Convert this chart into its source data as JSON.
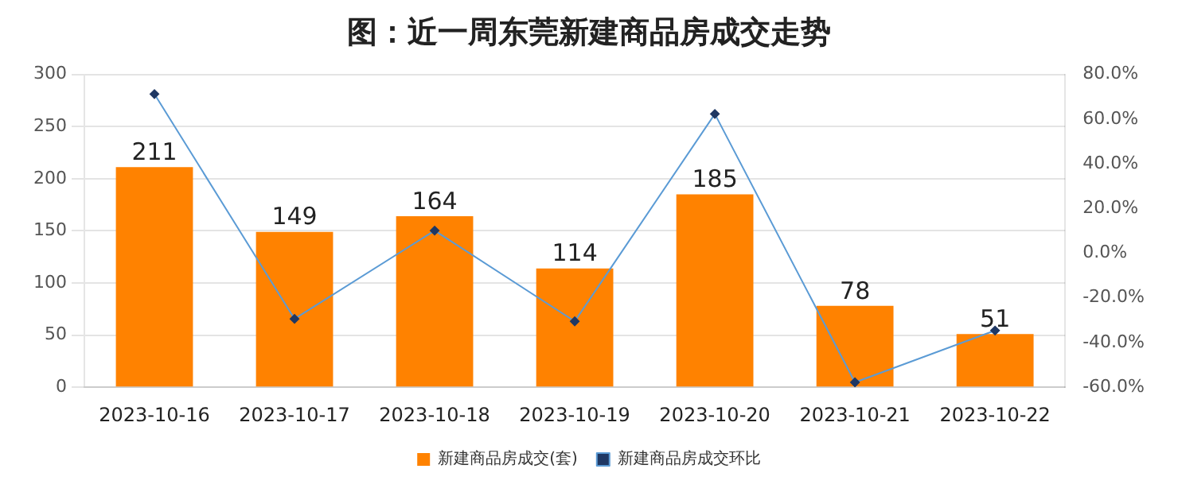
{
  "chart_data": {
    "type": "bar",
    "title": "图：近一周东莞新建商品房成交走势",
    "categories": [
      "2023-10-16",
      "2023-10-17",
      "2023-10-18",
      "2023-10-19",
      "2023-10-20",
      "2023-10-21",
      "2023-10-22"
    ],
    "series": [
      {
        "name": "新建商品房成交(套)",
        "color": "#ff8200",
        "values": [
          211,
          149,
          164,
          114,
          185,
          78,
          51
        ],
        "value_labels": [
          "211",
          "149",
          "164",
          "114",
          "185",
          "78",
          "51"
        ]
      },
      {
        "name": "新建商品房成交环比",
        "type": "line",
        "axis": "y2",
        "color": "#5b9bd5",
        "marker": "diamond",
        "values": [
          71.2,
          -29.4,
          10.1,
          -30.5,
          62.3,
          -57.8,
          -34.6
        ]
      }
    ],
    "ylim": [
      0,
      300
    ],
    "yticks": [
      0,
      50,
      100,
      150,
      200,
      250,
      300
    ],
    "y2lim": [
      -60,
      80
    ],
    "y2ticks": [
      {
        "value": -60,
        "label": "-60.0%"
      },
      {
        "value": -40,
        "label": "-40.0%"
      },
      {
        "value": -20,
        "label": "-20.0%"
      },
      {
        "value": 0,
        "label": "0.0%"
      },
      {
        "value": 20,
        "label": "20.0%"
      },
      {
        "value": 40,
        "label": "40.0%"
      },
      {
        "value": 60,
        "label": "60.0%"
      },
      {
        "value": 80,
        "label": "80.0%"
      }
    ],
    "grid": "y",
    "legend": "bottom"
  }
}
